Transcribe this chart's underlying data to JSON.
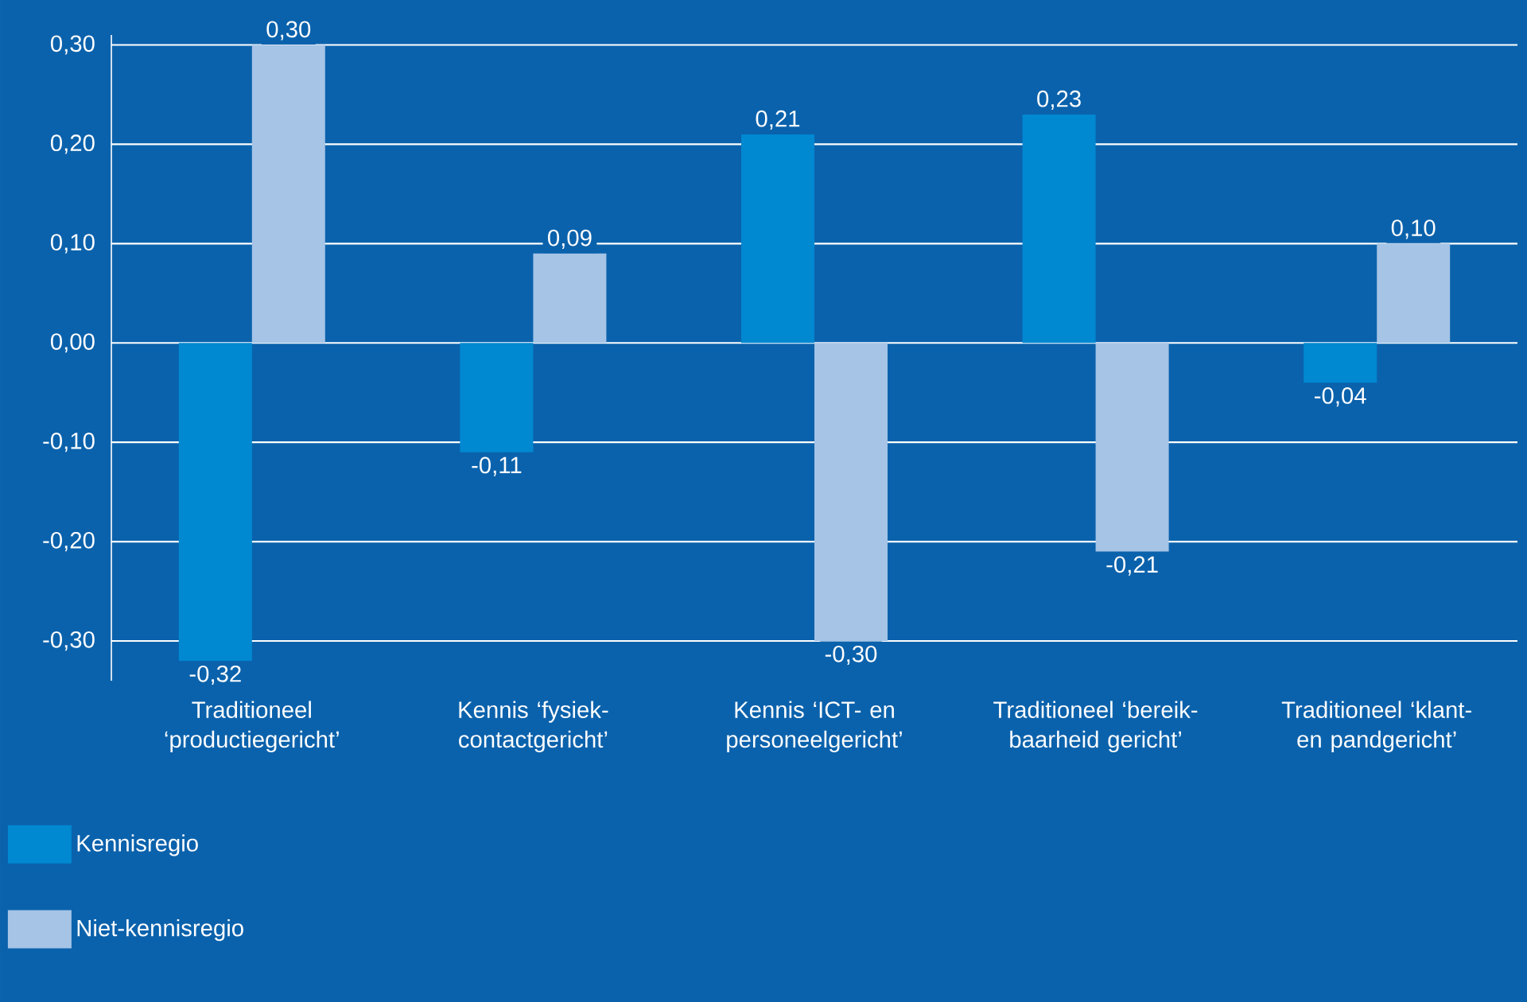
{
  "chart_data": {
    "type": "bar",
    "categories": [
      "Traditioneel ‘productiegericht’",
      "Kennis ‘fysiek-contactgericht’",
      "Kennis ‘ICT- en personeelgericht’",
      "Traditioneel ‘bereik-baarheid gericht’",
      "Traditioneel ‘klant- en pandgericht’"
    ],
    "series": [
      {
        "name": "Kennisregio",
        "color": "#0088d1",
        "values": [
          -0.32,
          -0.11,
          0.21,
          0.23,
          -0.04
        ],
        "value_labels": [
          "-0,32",
          "-0,11",
          "0,21",
          "0,23",
          "-0,04"
        ]
      },
      {
        "name": "Niet-kennisregio",
        "color": "#a5c4e6",
        "values": [
          0.3,
          0.09,
          -0.3,
          -0.21,
          0.1
        ],
        "value_labels": [
          "0,30",
          "0,09",
          "-0,30",
          "-0,21",
          "0,10"
        ]
      }
    ],
    "ylim": [
      -0.34,
      0.31
    ],
    "yticks": [
      {
        "value": -0.3,
        "label": "-0,30"
      },
      {
        "value": -0.2,
        "label": "-0,20"
      },
      {
        "value": -0.1,
        "label": "-0,10"
      },
      {
        "value": 0,
        "label": "0,00"
      },
      {
        "value": 0.1,
        "label": "0,10"
      },
      {
        "value": 0.2,
        "label": "0,20"
      },
      {
        "value": 0.3,
        "label": "0,30"
      }
    ],
    "grid": "y",
    "legend": "bottom left"
  }
}
